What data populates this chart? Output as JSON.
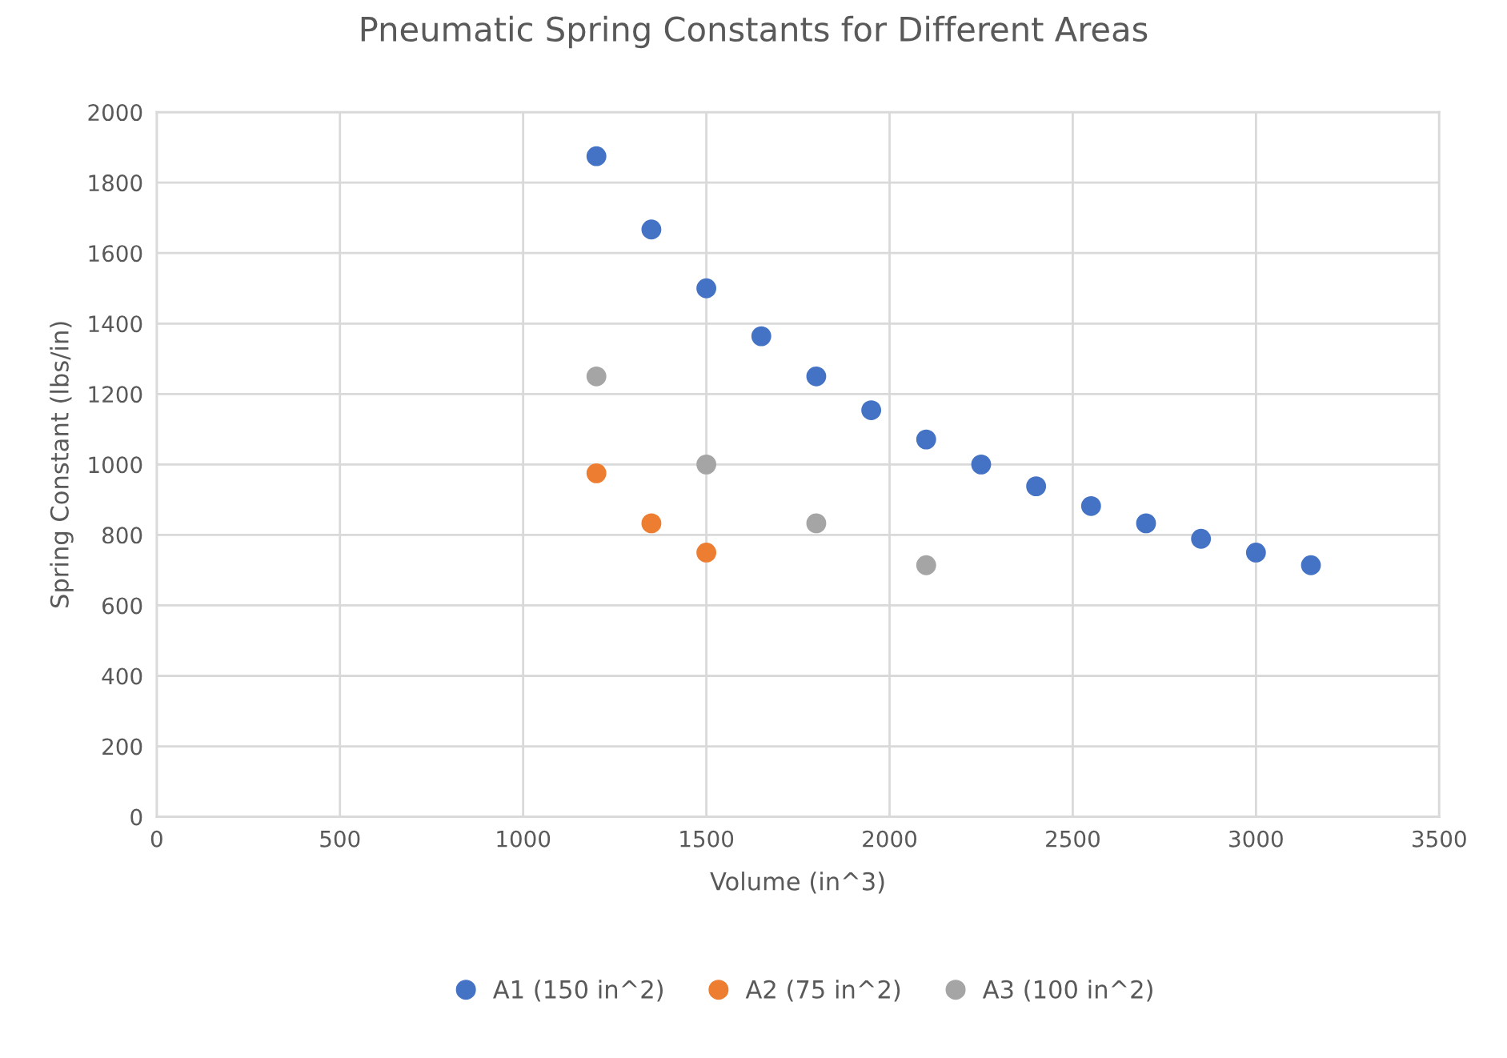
{
  "chart_data": {
    "type": "scatter",
    "title": "Pneumatic Spring Constants for Different Areas",
    "xlabel": "Volume (in^3)",
    "ylabel": "Spring Constant (lbs/in)",
    "series": [
      {
        "name": "A1 (150 in^2)",
        "color": "#4472c4",
        "x": [
          1200,
          1350,
          1500,
          1650,
          1800,
          1950,
          2100,
          2250,
          2400,
          2550,
          2700,
          2850,
          3000,
          3150
        ],
        "values": [
          1875,
          1667,
          1500,
          1364,
          1250,
          1154,
          1071,
          1000,
          938,
          882,
          833,
          789,
          750,
          714
        ]
      },
      {
        "name": "A2 (75 in^2)",
        "color": "#ed7d31",
        "x": [
          1200,
          1350,
          1500
        ],
        "values": [
          975,
          833,
          750
        ]
      },
      {
        "name": "A3 (100 in^2)",
        "color": "#a5a5a5",
        "x": [
          1200,
          1500,
          1800,
          2100
        ],
        "values": [
          1250,
          1000,
          833,
          714
        ]
      }
    ],
    "xlim": [
      0,
      3500
    ],
    "xticks": [
      0,
      500,
      1000,
      1500,
      2000,
      2500,
      3000,
      3500
    ],
    "ylim": [
      0,
      2000
    ],
    "yticks": [
      0,
      200,
      400,
      600,
      800,
      1000,
      1200,
      1400,
      1600,
      1800,
      2000
    ],
    "grid": true,
    "legend": "bottom",
    "marker": "circle"
  }
}
